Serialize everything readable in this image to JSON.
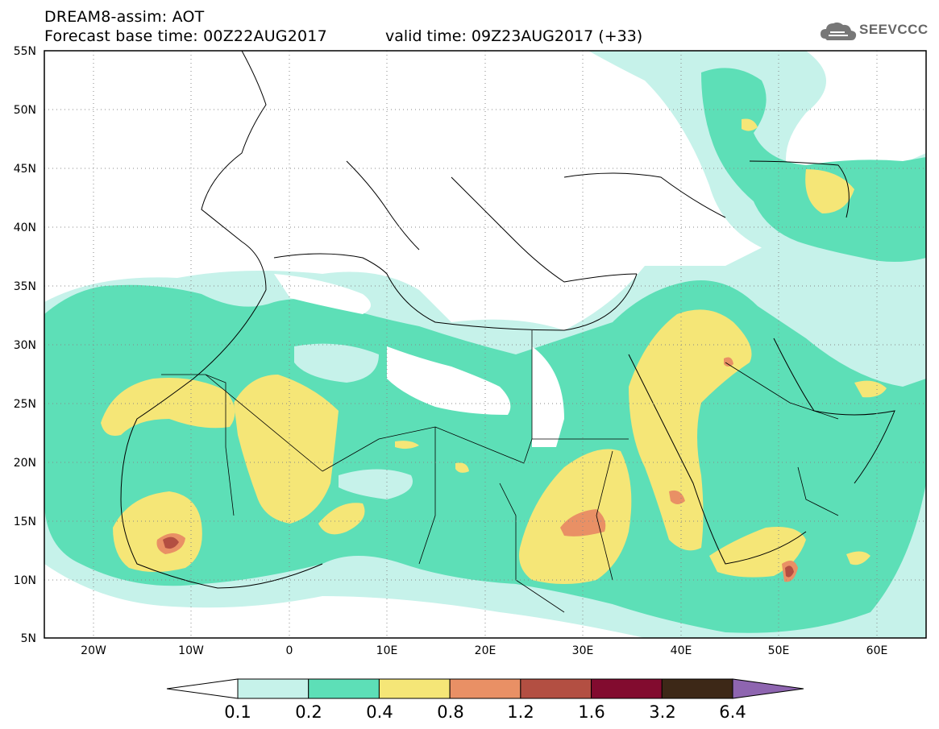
{
  "header": {
    "title_line1": "DREAM8-assim: AOT",
    "title_line2": "Forecast base time: 00Z22AUG2017",
    "valid_time": "valid time: 09Z23AUG2017 (+33)",
    "logo_text": "SEEVCCC"
  },
  "map": {
    "lat_ticks": [
      "55N",
      "50N",
      "45N",
      "40N",
      "35N",
      "30N",
      "25N",
      "20N",
      "15N",
      "10N",
      "5N"
    ],
    "lon_ticks": [
      "20W",
      "10W",
      "0",
      "10E",
      "20E",
      "30E",
      "40E",
      "50E",
      "60E"
    ],
    "lat_range": [
      5,
      55
    ],
    "lon_range": [
      -25,
      65
    ],
    "grid": "dotted"
  },
  "colorbar": {
    "labels": [
      "0.1",
      "0.2",
      "0.4",
      "0.8",
      "1.2",
      "1.6",
      "3.2",
      "6.4"
    ],
    "colors": [
      "#ffffff",
      "#c6f2ea",
      "#5ddfb7",
      "#f5e677",
      "#e99065",
      "#b34f42",
      "#820b2f",
      "#3d2817",
      "#8e65b0"
    ]
  }
}
